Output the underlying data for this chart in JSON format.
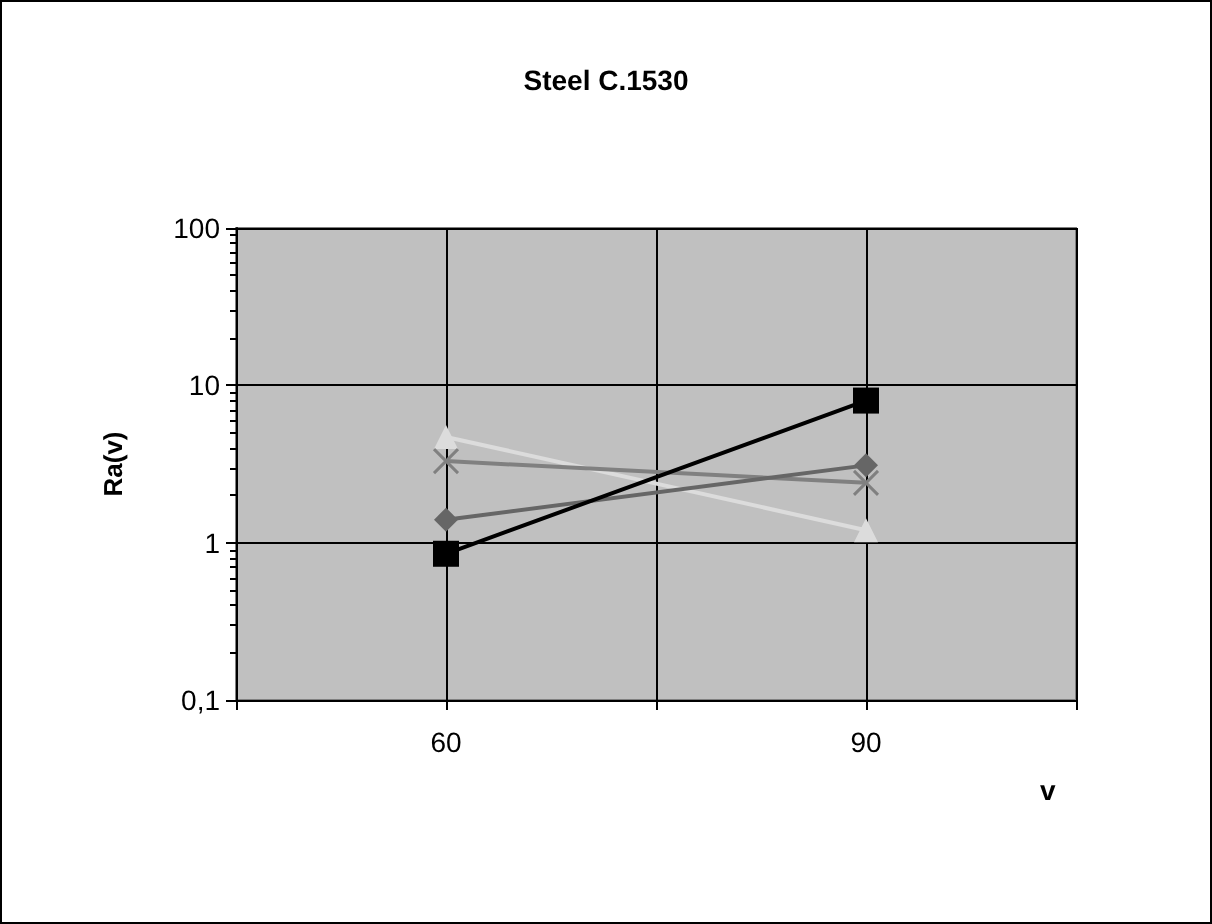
{
  "chart_data": {
    "type": "line",
    "title": "Steel C.1530",
    "xlabel": "v",
    "ylabel": "Ra(v)",
    "x": [
      60,
      90
    ],
    "series": [
      {
        "color": "#000000",
        "marker": "square",
        "values": [
          0.85,
          8.0
        ]
      },
      {
        "color": "#666666",
        "marker": "diamond",
        "values": [
          1.4,
          3.1
        ]
      },
      {
        "color": "#808080",
        "marker": "cross",
        "values": [
          3.3,
          2.4
        ]
      },
      {
        "color": "#dcdcdc",
        "marker": "triangle",
        "values": [
          4.7,
          1.2
        ]
      }
    ],
    "xlim": [
      45,
      105
    ],
    "xticks": [
      {
        "value": 45,
        "label": null
      },
      60,
      {
        "value": 75,
        "label": null
      },
      90,
      {
        "value": 105,
        "label": null
      }
    ],
    "ylim": [
      0.1,
      100
    ],
    "yticks": [
      {
        "value": 0.1,
        "label": "0,1"
      },
      1,
      10,
      100
    ],
    "log": "y",
    "grid": true
  }
}
